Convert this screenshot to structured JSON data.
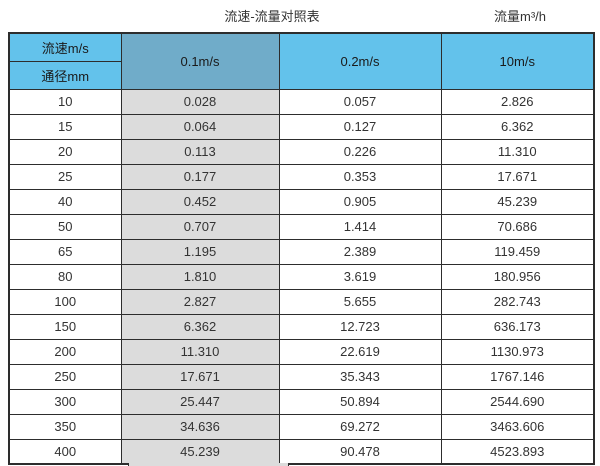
{
  "captions": {
    "title": "流速-流量对照表",
    "unit_label": "流量m³/h"
  },
  "table": {
    "corner_top": "流速m/s",
    "corner_bottom": "通径mm",
    "columns": [
      "0.1m/s",
      "0.2m/s",
      "10m/s"
    ],
    "rows": [
      {
        "diameter": "10",
        "values": [
          "0.028",
          "0.057",
          "2.826"
        ]
      },
      {
        "diameter": "15",
        "values": [
          "0.064",
          "0.127",
          "6.362"
        ]
      },
      {
        "diameter": "20",
        "values": [
          "0.113",
          "0.226",
          "11.310"
        ]
      },
      {
        "diameter": "25",
        "values": [
          "0.177",
          "0.353",
          "17.671"
        ]
      },
      {
        "diameter": "40",
        "values": [
          "0.452",
          "0.905",
          "45.239"
        ]
      },
      {
        "diameter": "50",
        "values": [
          "0.707",
          "1.414",
          "70.686"
        ]
      },
      {
        "diameter": "65",
        "values": [
          "1.195",
          "2.389",
          "119.459"
        ]
      },
      {
        "diameter": "80",
        "values": [
          "1.810",
          "3.619",
          "180.956"
        ]
      },
      {
        "diameter": "100",
        "values": [
          "2.827",
          "5.655",
          "282.743"
        ]
      },
      {
        "diameter": "150",
        "values": [
          "6.362",
          "12.723",
          "636.173"
        ]
      },
      {
        "diameter": "200",
        "values": [
          "11.310",
          "22.619",
          "1130.973"
        ]
      },
      {
        "diameter": "250",
        "values": [
          "17.671",
          "35.343",
          "1767.146"
        ]
      },
      {
        "diameter": "300",
        "values": [
          "25.447",
          "50.894",
          "2544.690"
        ]
      },
      {
        "diameter": "350",
        "values": [
          "34.636",
          "69.272",
          "3463.606"
        ]
      },
      {
        "diameter": "400",
        "values": [
          "45.239",
          "90.478",
          "4523.893"
        ]
      }
    ]
  },
  "colors": {
    "header_light_blue": "#63c2eb",
    "header_dark_blue": "#70acc9",
    "highlight_column_gray": "#dcdcdc",
    "border": "#2d2d2d",
    "text": "#333333"
  },
  "chart_data": {
    "type": "table",
    "title": "流速-流量对照表",
    "unit_label": "流量m³/h",
    "column_header": "流速m/s",
    "row_header": "通径mm",
    "categories": [
      10,
      15,
      20,
      25,
      40,
      50,
      65,
      80,
      100,
      150,
      200,
      250,
      300,
      350,
      400
    ],
    "series": [
      {
        "name": "0.1m/s",
        "values": [
          0.028,
          0.064,
          0.113,
          0.177,
          0.452,
          0.707,
          1.195,
          1.81,
          2.827,
          6.362,
          11.31,
          17.671,
          25.447,
          34.636,
          45.239
        ]
      },
      {
        "name": "0.2m/s",
        "values": [
          0.057,
          0.127,
          0.226,
          0.353,
          0.905,
          1.414,
          2.389,
          3.619,
          5.655,
          12.723,
          22.619,
          35.343,
          50.894,
          69.272,
          90.478
        ]
      },
      {
        "name": "10m/s",
        "values": [
          2.826,
          6.362,
          11.31,
          17.671,
          45.239,
          70.686,
          119.459,
          180.956,
          282.743,
          636.173,
          1130.973,
          1767.146,
          2544.69,
          3463.606,
          4523.893
        ]
      }
    ]
  }
}
